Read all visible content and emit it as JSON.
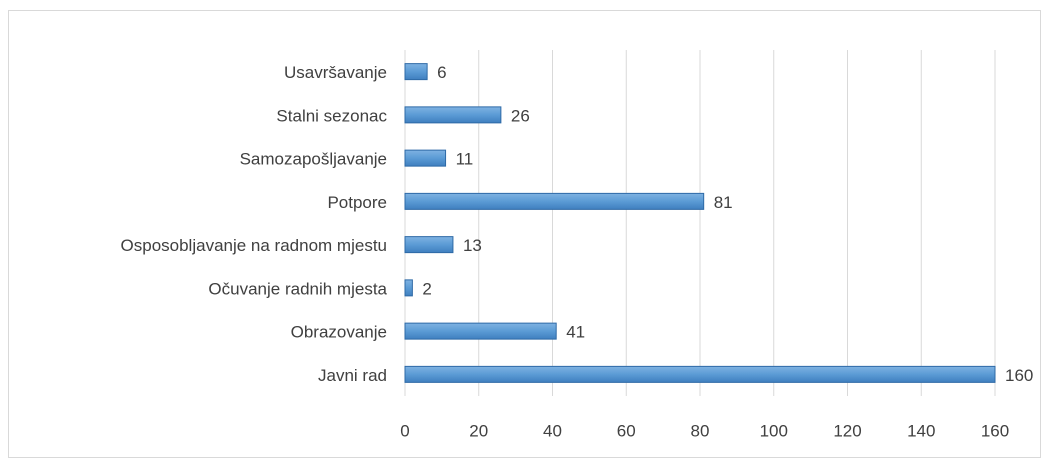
{
  "chart_data": {
    "type": "barh",
    "categories": [
      "Usavršavanje",
      "Stalni sezonac",
      "Samozapošljavanje",
      "Potpore",
      "Osposobljavanje na radnom mjestu",
      "Očuvanje radnih mjesta",
      "Obrazovanje",
      "Javni rad"
    ],
    "values": [
      6,
      26,
      11,
      81,
      13,
      2,
      41,
      160
    ],
    "color": "#5b9bd5",
    "xlim": [
      0,
      160
    ],
    "xticks": [
      0,
      20,
      40,
      60,
      80,
      100,
      120,
      140,
      160
    ],
    "grid": true
  }
}
